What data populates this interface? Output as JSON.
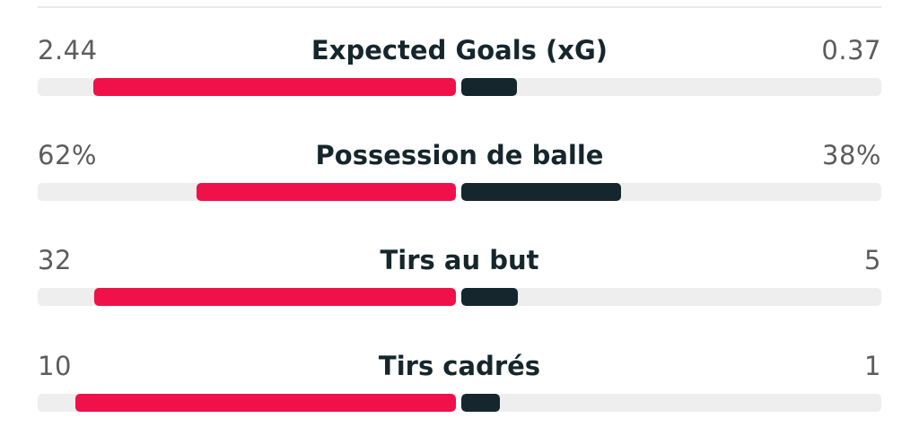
{
  "colors": {
    "home": "#f0104a",
    "away": "#15262c",
    "track": "#eeeeee"
  },
  "stats": [
    {
      "label": "Expected Goals (xG)",
      "home_display": "2.44",
      "away_display": "0.37",
      "home_share": 0.868,
      "away_share": 0.132
    },
    {
      "label": "Possession de balle",
      "home_display": "62%",
      "away_display": "38%",
      "home_share": 0.62,
      "away_share": 0.38
    },
    {
      "label": "Tirs au but",
      "home_display": "32",
      "away_display": "5",
      "home_share": 0.865,
      "away_share": 0.135
    },
    {
      "label": "Tirs cadrés",
      "home_display": "10",
      "away_display": "1",
      "home_share": 0.909,
      "away_share": 0.091
    }
  ]
}
